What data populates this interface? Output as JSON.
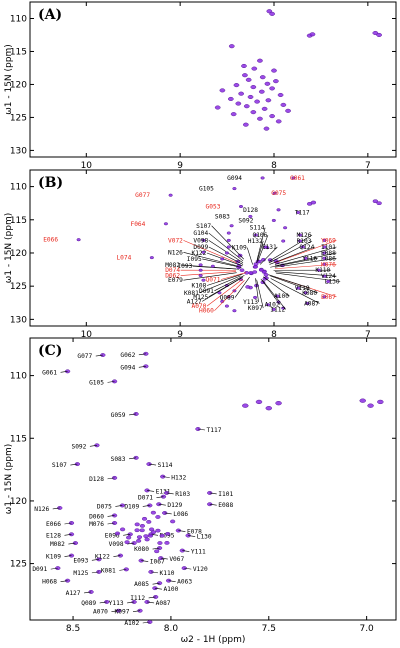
{
  "chart_data": [
    {
      "panel": "(A)",
      "type": "scatter",
      "xlabel": "ω2 - 1H  (ppm)",
      "ylabel": "ω1 - 15N  (ppm)",
      "xlim": [
        10.6,
        6.7
      ],
      "ylim": [
        107.5,
        131
      ],
      "xticks": [
        10,
        9,
        8,
        7
      ],
      "yticks": [
        110,
        115,
        120,
        125,
        130
      ],
      "peak_color": "#8a2be2",
      "series": [
        {
          "points": [
            [
              8.05,
              108.9
            ],
            [
              8.02,
              109.3
            ],
            [
              7.62,
              112.6
            ],
            [
              7.59,
              112.4
            ],
            [
              6.92,
              112.2
            ],
            [
              6.88,
              112.5
            ],
            [
              8.45,
              114.2
            ],
            [
              8.15,
              116.4
            ],
            [
              8.32,
              117.2
            ],
            [
              8.21,
              117.6
            ],
            [
              8.0,
              117.9
            ],
            [
              8.31,
              118.6
            ],
            [
              8.12,
              118.9
            ],
            [
              8.27,
              119.3
            ],
            [
              7.98,
              119.5
            ],
            [
              8.07,
              119.9
            ],
            [
              8.4,
              120.1
            ],
            [
              8.22,
              120.4
            ],
            [
              8.02,
              120.6
            ],
            [
              8.55,
              120.9
            ],
            [
              8.13,
              121.1
            ],
            [
              8.35,
              121.4
            ],
            [
              7.93,
              121.6
            ],
            [
              8.25,
              121.9
            ],
            [
              8.46,
              122.2
            ],
            [
              8.06,
              122.4
            ],
            [
              8.18,
              122.6
            ],
            [
              8.38,
              122.9
            ],
            [
              7.9,
              123.1
            ],
            [
              8.29,
              123.3
            ],
            [
              8.6,
              123.5
            ],
            [
              8.1,
              123.7
            ],
            [
              7.85,
              124.0
            ],
            [
              8.22,
              124.2
            ],
            [
              8.43,
              124.5
            ],
            [
              8.02,
              124.8
            ],
            [
              8.15,
              125.2
            ],
            [
              7.95,
              125.6
            ],
            [
              8.3,
              126.1
            ],
            [
              8.08,
              126.7
            ]
          ]
        }
      ]
    },
    {
      "panel": "(B)",
      "type": "scatter",
      "xlabel": "ω2 - 1H  (ppm)",
      "ylabel": "ω1 - 15N  (ppm)",
      "xlim": [
        10.6,
        6.7
      ],
      "ylim": [
        107.5,
        131
      ],
      "xticks": [
        10,
        9,
        8,
        7
      ],
      "yticks": [
        110,
        115,
        120,
        125,
        130
      ],
      "red_label_color": "#e8281e",
      "black_label_color": "#000000",
      "labels": [
        {
          "text": "G094",
          "x": 8.42,
          "y": 109.0,
          "color": "black"
        },
        {
          "text": "G061",
          "x": 7.75,
          "y": 109.0,
          "color": "red"
        },
        {
          "text": "G105",
          "x": 8.72,
          "y": 110.6,
          "color": "black"
        },
        {
          "text": "G077",
          "x": 9.4,
          "y": 111.6,
          "color": "red"
        },
        {
          "text": "G075",
          "x": 7.95,
          "y": 111.3,
          "color": "red"
        },
        {
          "text": "G053",
          "x": 8.65,
          "y": 113.3,
          "color": "red"
        },
        {
          "text": "D128",
          "x": 8.25,
          "y": 113.8,
          "color": "black"
        },
        {
          "text": "S083",
          "x": 8.55,
          "y": 114.8,
          "color": "black"
        },
        {
          "text": "S092",
          "x": 8.3,
          "y": 115.4,
          "color": "black"
        },
        {
          "text": "T117",
          "x": 7.7,
          "y": 114.2,
          "color": "black"
        },
        {
          "text": "F064",
          "x": 9.45,
          "y": 115.9,
          "color": "red"
        },
        {
          "text": "S107",
          "x": 8.75,
          "y": 116.2,
          "color": "black"
        },
        {
          "text": "S114",
          "x": 8.18,
          "y": 116.5,
          "color": "black"
        },
        {
          "text": "G104",
          "x": 8.78,
          "y": 117.3,
          "color": "black"
        },
        {
          "text": "Q106",
          "x": 8.15,
          "y": 117.6,
          "color": "black"
        },
        {
          "text": "M126",
          "x": 7.68,
          "y": 117.6,
          "color": "black"
        },
        {
          "text": "E066",
          "x": 10.38,
          "y": 118.3,
          "color": "red"
        },
        {
          "text": "V072",
          "x": 9.05,
          "y": 118.4,
          "color": "red"
        },
        {
          "text": "V098",
          "x": 8.78,
          "y": 118.4,
          "color": "black"
        },
        {
          "text": "H132",
          "x": 8.2,
          "y": 118.5,
          "color": "black"
        },
        {
          "text": "R103",
          "x": 7.68,
          "y": 118.5,
          "color": "black"
        },
        {
          "text": "Y069",
          "x": 7.42,
          "y": 118.4,
          "color": "red"
        },
        {
          "text": "D099",
          "x": 8.78,
          "y": 119.4,
          "color": "black"
        },
        {
          "text": "K109",
          "x": 8.37,
          "y": 119.5,
          "color": "black"
        },
        {
          "text": "E131",
          "x": 8.05,
          "y": 119.4,
          "color": "black"
        },
        {
          "text": "Q124",
          "x": 7.65,
          "y": 119.4,
          "color": "black"
        },
        {
          "text": "I101",
          "x": 7.42,
          "y": 119.4,
          "color": "black"
        },
        {
          "text": "N126",
          "x": 9.05,
          "y": 120.2,
          "color": "black"
        },
        {
          "text": "K122",
          "x": 8.8,
          "y": 120.3,
          "color": "black"
        },
        {
          "text": "E088",
          "x": 7.42,
          "y": 120.3,
          "color": "black"
        },
        {
          "text": "L074",
          "x": 9.6,
          "y": 121.0,
          "color": "red"
        },
        {
          "text": "I095",
          "x": 8.85,
          "y": 121.2,
          "color": "black"
        },
        {
          "text": "Y116",
          "x": 7.62,
          "y": 121.1,
          "color": "black"
        },
        {
          "text": "L086",
          "x": 7.42,
          "y": 121.1,
          "color": "black"
        },
        {
          "text": "M082",
          "x": 9.08,
          "y": 122.1,
          "color": "black"
        },
        {
          "text": "I093",
          "x": 8.95,
          "y": 122.3,
          "color": "black"
        },
        {
          "text": "K076",
          "x": 7.42,
          "y": 122.0,
          "color": "red"
        },
        {
          "text": "D074",
          "x": 9.08,
          "y": 122.9,
          "color": "red"
        },
        {
          "text": "K110",
          "x": 7.48,
          "y": 122.9,
          "color": "black"
        },
        {
          "text": "D062",
          "x": 9.08,
          "y": 123.7,
          "color": "red"
        },
        {
          "text": "E079",
          "x": 9.05,
          "y": 124.4,
          "color": "black"
        },
        {
          "text": "Q071",
          "x": 8.65,
          "y": 124.3,
          "color": "red"
        },
        {
          "text": "V124",
          "x": 7.42,
          "y": 123.8,
          "color": "black"
        },
        {
          "text": "L130",
          "x": 7.38,
          "y": 124.6,
          "color": "black"
        },
        {
          "text": "K108",
          "x": 8.8,
          "y": 125.2,
          "color": "black"
        },
        {
          "text": "D091",
          "x": 8.72,
          "y": 126.0,
          "color": "black"
        },
        {
          "text": "K081",
          "x": 8.88,
          "y": 126.3,
          "color": "black"
        },
        {
          "text": "M125",
          "x": 8.78,
          "y": 126.9,
          "color": "black"
        },
        {
          "text": "A127",
          "x": 8.85,
          "y": 127.6,
          "color": "black"
        },
        {
          "text": "A070",
          "x": 8.8,
          "y": 128.3,
          "color": "red"
        },
        {
          "text": "H060",
          "x": 8.72,
          "y": 129.0,
          "color": "red"
        },
        {
          "text": "Q089",
          "x": 8.5,
          "y": 127.0,
          "color": "black"
        },
        {
          "text": "Y113",
          "x": 8.25,
          "y": 127.7,
          "color": "black"
        },
        {
          "text": "K097",
          "x": 8.2,
          "y": 128.6,
          "color": "black"
        },
        {
          "text": "A102",
          "x": 8.02,
          "y": 128.1,
          "color": "black"
        },
        {
          "text": "I112",
          "x": 7.96,
          "y": 128.8,
          "color": "black"
        },
        {
          "text": "A100",
          "x": 7.92,
          "y": 126.8,
          "color": "black"
        },
        {
          "text": "A087",
          "x": 7.6,
          "y": 127.9,
          "color": "black"
        },
        {
          "text": "E067",
          "x": 7.42,
          "y": 126.9,
          "color": "red"
        },
        {
          "text": "V119",
          "x": 7.7,
          "y": 125.6,
          "color": "black"
        },
        {
          "text": "K080",
          "x": 7.62,
          "y": 126.3,
          "color": "black"
        }
      ]
    },
    {
      "panel": "(C)",
      "type": "scatter",
      "xlabel": "ω2 - 1H  (ppm)",
      "ylabel": "ω1 - 15N  (ppm)",
      "xlim": [
        8.72,
        6.85
      ],
      "ylim": [
        107.0,
        129.5
      ],
      "xticks": [
        8.5,
        8.0,
        7.5,
        7.0
      ],
      "xtick_labels": [
        "8.5",
        "8.0",
        "7.5",
        "7.0"
      ],
      "yticks": [
        110,
        115,
        120,
        125
      ],
      "labels": [
        {
          "text": "G077",
          "x": 8.44,
          "y": 108.6
        },
        {
          "text": "G062",
          "x": 8.22,
          "y": 108.5
        },
        {
          "text": "G061",
          "x": 8.62,
          "y": 109.9
        },
        {
          "text": "G094",
          "x": 8.22,
          "y": 109.5
        },
        {
          "text": "G105",
          "x": 8.38,
          "y": 110.7
        },
        {
          "text": "G059",
          "x": 8.27,
          "y": 113.3
        },
        {
          "text": "T117",
          "x": 7.78,
          "y": 114.5
        },
        {
          "text": "S092",
          "x": 8.47,
          "y": 115.8
        },
        {
          "text": "S083",
          "x": 8.27,
          "y": 116.8
        },
        {
          "text": "S107",
          "x": 8.57,
          "y": 117.3
        },
        {
          "text": "S114",
          "x": 8.03,
          "y": 117.3
        },
        {
          "text": "H132",
          "x": 7.96,
          "y": 118.3
        },
        {
          "text": "D128",
          "x": 8.38,
          "y": 118.4
        },
        {
          "text": "I101",
          "x": 7.72,
          "y": 119.6
        },
        {
          "text": "E131",
          "x": 8.04,
          "y": 119.4
        },
        {
          "text": "R103",
          "x": 7.94,
          "y": 119.6
        },
        {
          "text": "D071",
          "x": 8.13,
          "y": 119.9
        },
        {
          "text": "E088",
          "x": 7.72,
          "y": 120.5
        },
        {
          "text": "D075",
          "x": 8.34,
          "y": 120.6
        },
        {
          "text": "D060",
          "x": 8.38,
          "y": 121.4
        },
        {
          "text": "D109",
          "x": 8.2,
          "y": 120.6
        },
        {
          "text": "D129",
          "x": 7.98,
          "y": 120.5
        },
        {
          "text": "N126",
          "x": 8.66,
          "y": 120.8
        },
        {
          "text": "L086",
          "x": 7.95,
          "y": 121.2
        },
        {
          "text": "E066",
          "x": 8.6,
          "y": 122.0
        },
        {
          "text": "M076",
          "x": 8.38,
          "y": 122.0
        },
        {
          "text": "E128",
          "x": 8.6,
          "y": 122.9
        },
        {
          "text": "E096",
          "x": 8.3,
          "y": 122.9
        },
        {
          "text": "E078",
          "x": 7.88,
          "y": 122.6
        },
        {
          "text": "E095",
          "x": 8.02,
          "y": 122.9
        },
        {
          "text": "M082",
          "x": 8.58,
          "y": 123.6
        },
        {
          "text": "V098",
          "x": 8.28,
          "y": 123.6
        },
        {
          "text": "L130",
          "x": 7.83,
          "y": 123.0
        },
        {
          "text": "K109",
          "x": 8.6,
          "y": 124.6
        },
        {
          "text": "E093",
          "x": 8.46,
          "y": 124.9
        },
        {
          "text": "K122",
          "x": 8.35,
          "y": 124.6
        },
        {
          "text": "K080",
          "x": 8.15,
          "y": 124.0
        },
        {
          "text": "Y111",
          "x": 7.86,
          "y": 124.2
        },
        {
          "text": "D091",
          "x": 8.67,
          "y": 125.6
        },
        {
          "text": "M125",
          "x": 8.46,
          "y": 125.9
        },
        {
          "text": "K081",
          "x": 8.32,
          "y": 125.7
        },
        {
          "text": "I067",
          "x": 8.07,
          "y": 125.0
        },
        {
          "text": "V067",
          "x": 7.97,
          "y": 124.8
        },
        {
          "text": "V120",
          "x": 7.85,
          "y": 125.6
        },
        {
          "text": "K110",
          "x": 8.02,
          "y": 125.9
        },
        {
          "text": "H068",
          "x": 8.62,
          "y": 126.6
        },
        {
          "text": "A063",
          "x": 7.93,
          "y": 126.6
        },
        {
          "text": "A085",
          "x": 8.15,
          "y": 126.8
        },
        {
          "text": "A100",
          "x": 8.0,
          "y": 127.2
        },
        {
          "text": "A127",
          "x": 8.5,
          "y": 127.5
        },
        {
          "text": "Q089",
          "x": 8.42,
          "y": 128.3
        },
        {
          "text": "Y113",
          "x": 8.28,
          "y": 128.3
        },
        {
          "text": "I112",
          "x": 8.17,
          "y": 127.9
        },
        {
          "text": "A087",
          "x": 8.04,
          "y": 128.3
        },
        {
          "text": "A070",
          "x": 8.36,
          "y": 129.0
        },
        {
          "text": "K097",
          "x": 8.25,
          "y": 129.0
        },
        {
          "text": "A102",
          "x": 8.2,
          "y": 129.9
        }
      ]
    }
  ]
}
